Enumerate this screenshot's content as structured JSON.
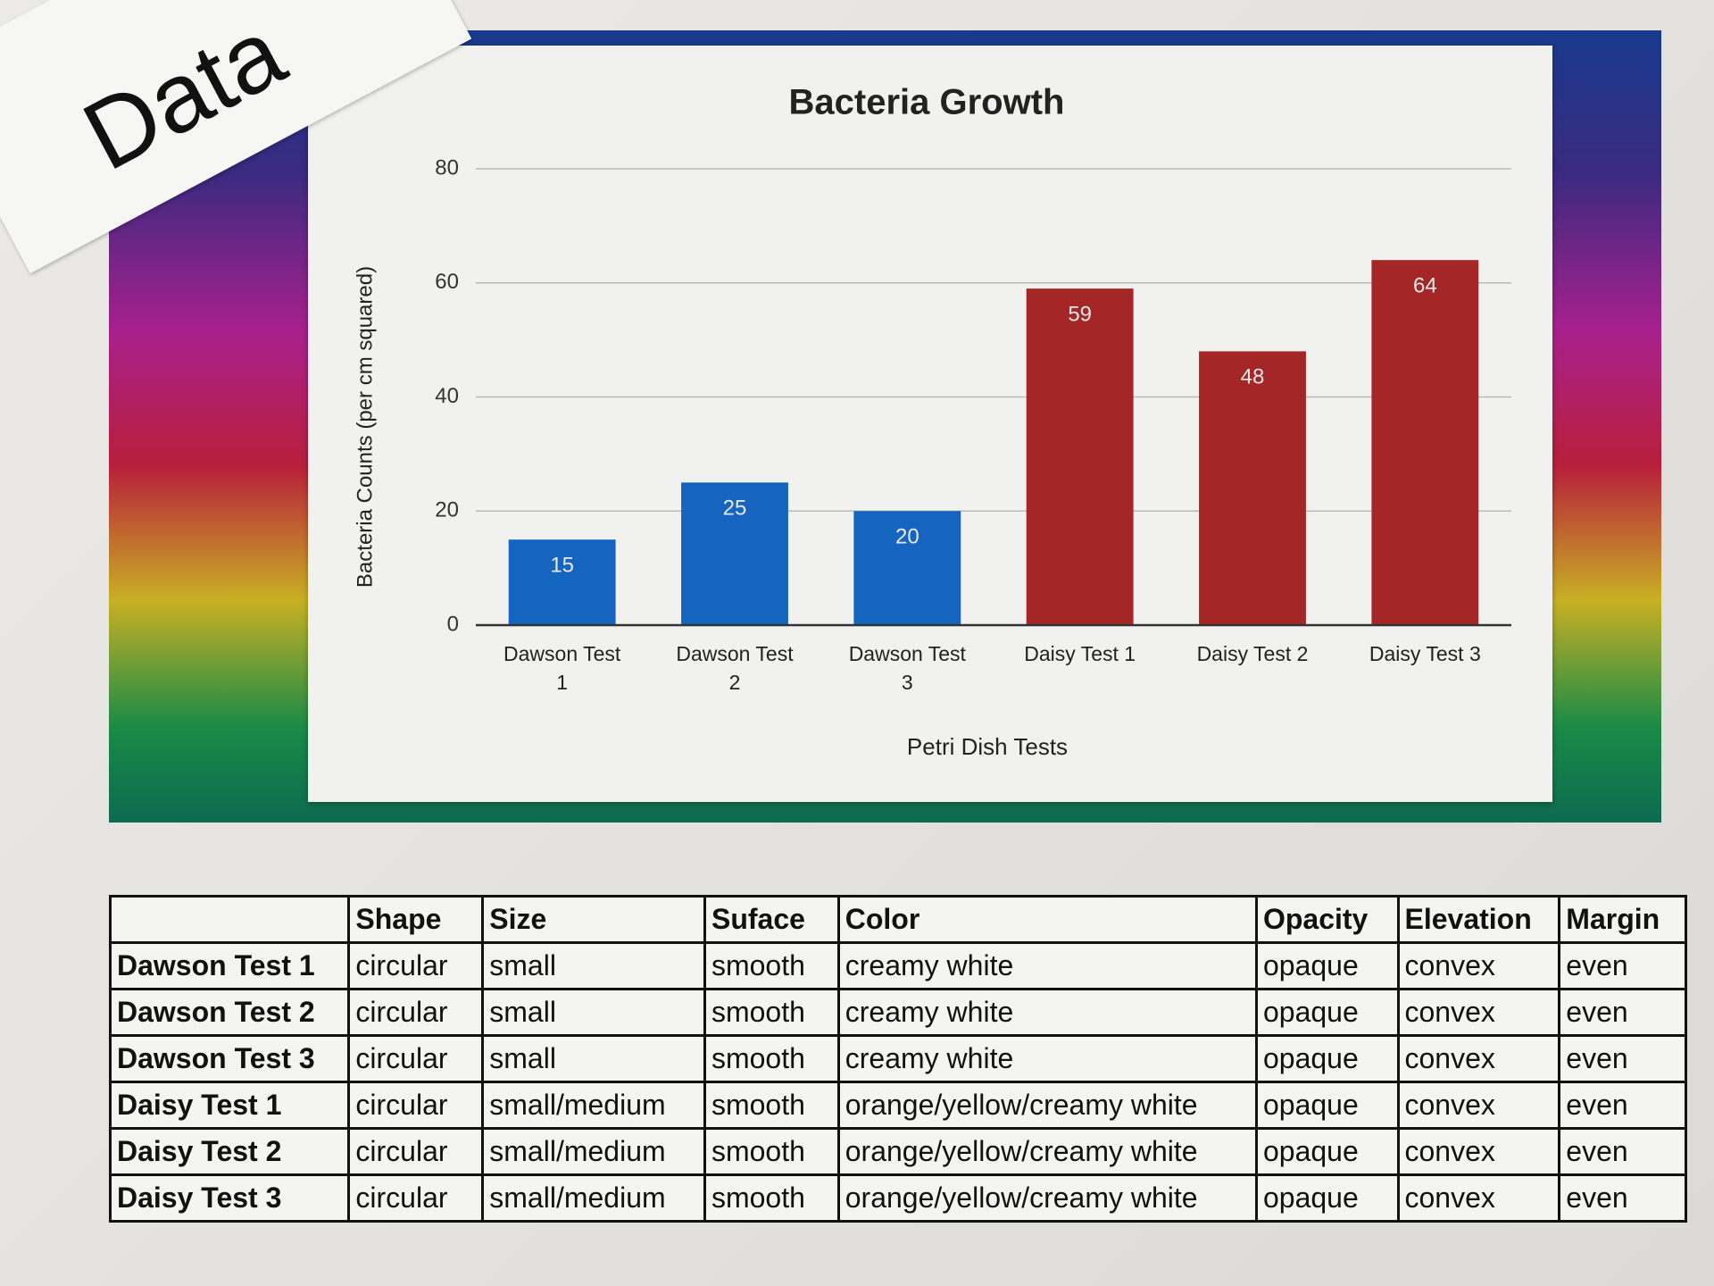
{
  "sign": "Data",
  "chart_data": {
    "type": "bar",
    "title": "Bacteria Growth",
    "x_label": "Petri Dish Tests",
    "y_label": "Bacteria Counts (per cm squared)",
    "categories": [
      "Dawson Test 1",
      "Dawson Test 2",
      "Dawson Test 3",
      "Daisy Test 1",
      "Daisy Test 2",
      "Daisy Test 3"
    ],
    "values": [
      15,
      25,
      20,
      59,
      48,
      64
    ],
    "colors": [
      "#1565c0",
      "#1565c0",
      "#1565c0",
      "#a52626",
      "#a52626",
      "#a52626"
    ],
    "ylim": [
      0,
      80
    ],
    "yticks": [
      0,
      20,
      40,
      60,
      80
    ],
    "grid": true
  },
  "table": {
    "header": [
      "Shape",
      "Size",
      "Suface",
      "Color",
      "Opacity",
      "Elevation",
      "Margin"
    ],
    "rows": [
      [
        "Dawson Test 1",
        "circular",
        "small",
        "smooth",
        "creamy white",
        "opaque",
        "convex",
        "even"
      ],
      [
        "Dawson Test 2",
        "circular",
        "small",
        "smooth",
        "creamy white",
        "opaque",
        "convex",
        "even"
      ],
      [
        "Dawson Test 3",
        "circular",
        "small",
        "smooth",
        "creamy white",
        "opaque",
        "convex",
        "even"
      ],
      [
        "Daisy Test 1",
        "circular",
        "small/medium",
        "smooth",
        "orange/yellow/creamy white",
        "opaque",
        "convex",
        "even"
      ],
      [
        "Daisy Test 2",
        "circular",
        "small/medium",
        "smooth",
        "orange/yellow/creamy white",
        "opaque",
        "convex",
        "even"
      ],
      [
        "Daisy Test 3",
        "circular",
        "small/medium",
        "smooth",
        "orange/yellow/creamy white",
        "opaque",
        "convex",
        "even"
      ]
    ]
  }
}
